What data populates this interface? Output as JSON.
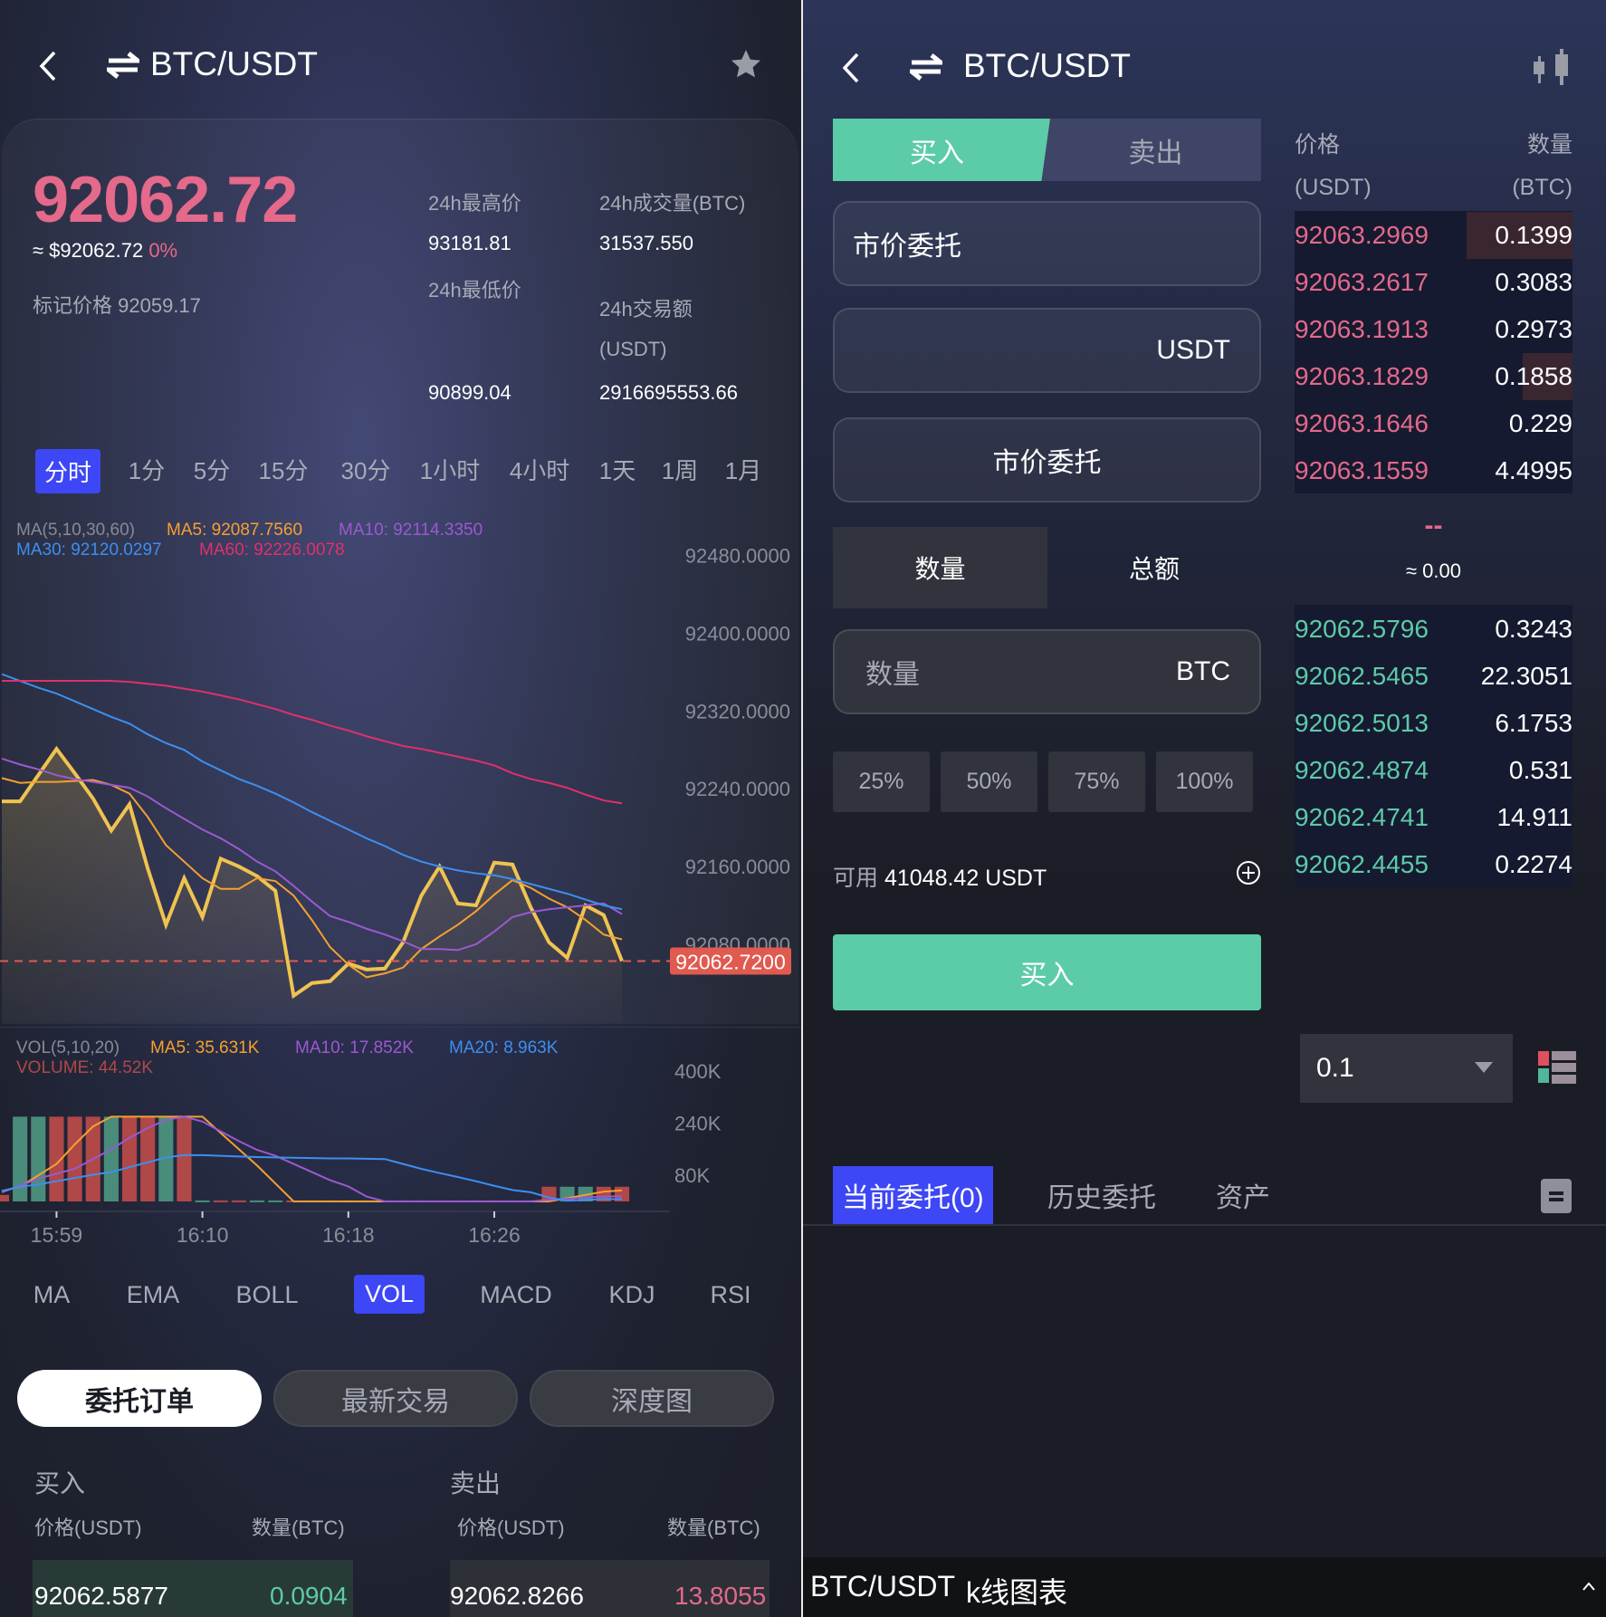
{
  "left": {
    "header": {
      "title": "BTC/USDT",
      "back_icon": "chevron-left-icon",
      "swap_icon": "swap-arrows-icon",
      "favorite_icon": "star-icon"
    },
    "ticker": {
      "last_price": "92062.72",
      "approx_usd": "≈ $92062.72",
      "change_pct": "0%",
      "mark_price_label": "标记价格",
      "mark_price": "92059.17",
      "high_label": "24h最高价",
      "high_value": "93181.81",
      "low_label": "24h最低价",
      "low_value": "90899.04",
      "vol_label": "24h成交量(BTC)",
      "vol_value": "31537.550",
      "turnover_label": "24h交易额",
      "turnover_unit": "(USDT)",
      "turnover_value": "2916695553.66"
    },
    "intervals": [
      "分时",
      "1分",
      "5分",
      "15分",
      "30分",
      "1小时",
      "4小时",
      "1天",
      "1周",
      "1月"
    ],
    "active_interval": "分时",
    "ma_legend": {
      "title": "MA(5,10,30,60)",
      "ma5": "MA5: 92087.7560",
      "ma10": "MA10: 92114.3350",
      "ma30": "MA30: 92120.0297",
      "ma60": "MA60: 92226.0078"
    },
    "vol_legend": {
      "title": "VOL(5,10,20)",
      "ma5": "MA5: 35.631K",
      "ma10": "MA10: 17.852K",
      "ma20": "MA20: 8.963K",
      "volume": "VOLUME: 44.52K"
    },
    "indicators": [
      "MA",
      "EMA",
      "BOLL",
      "VOL",
      "MACD",
      "KDJ",
      "RSI"
    ],
    "active_indicator": "VOL",
    "bottom_tabs": [
      "委托订单",
      "最新交易",
      "深度图"
    ],
    "active_bottom_tab": "委托订单",
    "orders": {
      "buy_title": "买入",
      "sell_title": "卖出",
      "price_header": "价格(USDT)",
      "qty_header": "数量(BTC)",
      "buy_row": {
        "price": "92062.5877",
        "qty": "0.0904"
      },
      "sell_row": {
        "price": "92062.8266",
        "qty": "13.8055"
      }
    }
  },
  "chart_data": [
    {
      "type": "line",
      "title": "",
      "y_ticks": [
        "92480.0000",
        "92400.0000",
        "92320.0000",
        "92240.0000",
        "92160.0000",
        "92080.0000"
      ],
      "ylim": [
        92000,
        92480
      ],
      "current_price_label": "92062.7200",
      "current_price": 92062.72,
      "colors": {
        "price": "#f0c350",
        "ma5": "#f5a030",
        "ma10": "#9b59d0",
        "ma30": "#3d8ff0",
        "ma60": "#e0306a",
        "current": "#e05a50"
      },
      "series": [
        {
          "key": "price",
          "values": [
            92227,
            92227,
            92254,
            92281,
            92256,
            92230,
            92197,
            92224,
            92158,
            92100,
            92148,
            92108,
            92168,
            92160,
            92150,
            92135,
            92027,
            92040,
            92042,
            92060,
            92054,
            92055,
            92082,
            92130,
            92160,
            92122,
            92120,
            92164,
            92162,
            92118,
            92082,
            92066,
            92120,
            92110,
            92062.72
          ]
        },
        {
          "key": "ma5",
          "name": "MA5",
          "values": [
            92251,
            92246,
            92247,
            92247,
            92248,
            92249,
            92244,
            92235,
            92211,
            92182,
            92165,
            92148,
            92137,
            92137,
            92148,
            92145,
            92130,
            92105,
            92077,
            92059,
            92046,
            92050,
            92056,
            92075,
            92088,
            92100,
            92114,
            92131,
            92146,
            92138,
            92127,
            92118,
            92105,
            92090,
            92085
          ]
        },
        {
          "key": "ma10",
          "name": "MA10",
          "values": [
            92271,
            92265,
            92260,
            92254,
            92250,
            92247,
            92244,
            92241,
            92232,
            92220,
            92209,
            92198,
            92189,
            92178,
            92165,
            92155,
            92140,
            92124,
            92109,
            92103,
            92096,
            92090,
            92083,
            92075,
            92075,
            92074,
            92080,
            92093,
            92108,
            92113,
            92116,
            92118,
            92120,
            92122,
            92111
          ]
        },
        {
          "key": "ma30",
          "name": "MA30",
          "values": [
            92358,
            92351,
            92344,
            92338,
            92330,
            92322,
            92314,
            92307,
            92296,
            92287,
            92280,
            92268,
            92259,
            92250,
            92243,
            92235,
            92226,
            92216,
            92207,
            92198,
            92189,
            92181,
            92172,
            92165,
            92160,
            92156,
            92153,
            92151,
            92147,
            92142,
            92137,
            92132,
            92126,
            92120,
            92116
          ]
        },
        {
          "key": "ma60",
          "name": "MA60",
          "values": [
            92351,
            92351,
            92351,
            92351,
            92351,
            92351,
            92351,
            92350,
            92348,
            92346,
            92343,
            92340,
            92336,
            92332,
            92327,
            92322,
            92316,
            92311,
            92305,
            92300,
            92294,
            92289,
            92284,
            92281,
            92277,
            92273,
            92269,
            92264,
            92256,
            92250,
            92246,
            92241,
            92234,
            92228,
            92225
          ]
        }
      ]
    },
    {
      "type": "bar",
      "title": "",
      "y_ticks": [
        "400K",
        "240K",
        "80K"
      ],
      "ylim_k": [
        0,
        480
      ],
      "x_ticks": [
        {
          "label": "15:59",
          "index": 3
        },
        {
          "label": "16:10",
          "index": 11
        },
        {
          "label": "16:18",
          "index": 19
        },
        {
          "label": "16:26",
          "index": 27
        }
      ],
      "colors": {
        "up": "#4a8c7a",
        "down": "#b04848",
        "ma5": "#f5a030",
        "ma10": "#9b59d0",
        "ma20": "#3d8ff0"
      },
      "volume_k": [
        20,
        260,
        260,
        260,
        260,
        260,
        260,
        260,
        260,
        260,
        260,
        3,
        3,
        3,
        3,
        3,
        3,
        3,
        3,
        3,
        3,
        3,
        3,
        3,
        3,
        3,
        3,
        3,
        3,
        3,
        45,
        45,
        45,
        45,
        45
      ],
      "direction": [
        "down",
        "up",
        "up",
        "down",
        "down",
        "down",
        "up",
        "down",
        "down",
        "up",
        "down",
        "up",
        "down",
        "down",
        "up",
        "up",
        "down",
        "up",
        "down",
        "up",
        "down",
        "up",
        "down",
        "up",
        "down",
        "down",
        "up",
        "down",
        "up",
        "down",
        "down",
        "up",
        "up",
        "down",
        "down"
      ],
      "series": [
        {
          "key": "ma5",
          "name": "MA5",
          "values": [
            32,
            45,
            80,
            115,
            175,
            230,
            260,
            260,
            260,
            260,
            260,
            260,
            210,
            160,
            110,
            55,
            0,
            0,
            0,
            0,
            0,
            0,
            0,
            0,
            0,
            0,
            0,
            0,
            0,
            0,
            0,
            10,
            20,
            30,
            34
          ]
        },
        {
          "key": "ma10",
          "name": "MA10",
          "values": [
            28,
            48,
            70,
            85,
            100,
            130,
            160,
            195,
            225,
            250,
            260,
            245,
            215,
            185,
            158,
            140,
            115,
            90,
            65,
            46,
            15,
            0,
            0,
            0,
            0,
            0,
            0,
            0,
            0,
            0,
            5,
            8,
            12,
            15,
            16
          ]
        },
        {
          "key": "ma20",
          "name": "MA20",
          "values": [
            32,
            45,
            52,
            62,
            72,
            82,
            90,
            105,
            120,
            135,
            142,
            142,
            140,
            138,
            136,
            135,
            134,
            133,
            132,
            132,
            131,
            130,
            115,
            100,
            87,
            75,
            62,
            48,
            35,
            28,
            12,
            2,
            5,
            7,
            7
          ]
        }
      ]
    }
  ],
  "right": {
    "header": {
      "title": "BTC/USDT",
      "back_icon": "chevron-left-icon",
      "swap_icon": "swap-arrows-icon",
      "chart_icon": "candlestick-icon"
    },
    "side_tabs": {
      "buy": "买入",
      "sell": "卖出",
      "active": "买入"
    },
    "order_type": "市价委托",
    "price_unit": "USDT",
    "market_button": "市价委托",
    "amount_tabs": {
      "qty": "数量",
      "total": "总额",
      "active": "数量"
    },
    "qty_input": {
      "placeholder": "数量",
      "unit": "BTC"
    },
    "percents": [
      "25%",
      "50%",
      "75%",
      "100%"
    ],
    "available_label": "可用",
    "available_value": "41048.42 USDT",
    "buy_button": "买入",
    "orderbook": {
      "price_header": "价格",
      "price_unit": "(USDT)",
      "qty_header": "数量",
      "qty_unit": "(BTC)",
      "asks": [
        {
          "price": "92063.2969",
          "qty": "0.1399",
          "depth": 0.38
        },
        {
          "price": "92063.2617",
          "qty": "0.3083",
          "depth": 0
        },
        {
          "price": "92063.1913",
          "qty": "0.2973",
          "depth": 0
        },
        {
          "price": "92063.1829",
          "qty": "0.1858",
          "depth": 0.18
        },
        {
          "price": "92063.1646",
          "qty": "0.229",
          "depth": 0
        },
        {
          "price": "92063.1559",
          "qty": "4.4995",
          "depth": 0
        }
      ],
      "last_price": "--",
      "last_approx": "≈ 0.00",
      "bids": [
        {
          "price": "92062.5796",
          "qty": "0.3243"
        },
        {
          "price": "92062.5465",
          "qty": "22.3051"
        },
        {
          "price": "92062.5013",
          "qty": "6.1753"
        },
        {
          "price": "92062.4874",
          "qty": "0.531"
        },
        {
          "price": "92062.4741",
          "qty": "14.911"
        },
        {
          "price": "92062.4455",
          "qty": "0.2274"
        }
      ],
      "depth_select": "0.1",
      "colors": {
        "ask": "#e4698a",
        "bid": "#5ccba8"
      }
    },
    "order_tabs": [
      "当前委托(0)",
      "历史委托",
      "资产"
    ],
    "active_order_tab": "当前委托(0)",
    "bottom_bar": {
      "pair": "BTC/USDT",
      "label": "k线图表"
    }
  }
}
